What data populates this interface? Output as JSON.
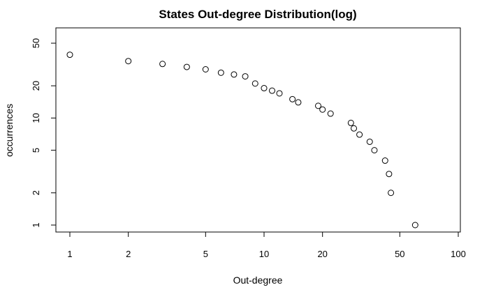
{
  "chart_data": {
    "type": "scatter",
    "title": "States Out-degree Distribution(log)",
    "xlabel": "Out-degree",
    "ylabel": "occurrences",
    "x_scale": "log",
    "y_scale": "log",
    "xlim": [
      1,
      100
    ],
    "ylim": [
      0.85,
      65
    ],
    "x_ticks": [
      1,
      2,
      5,
      10,
      20,
      50,
      100
    ],
    "y_ticks": [
      1,
      2,
      5,
      10,
      20,
      50
    ],
    "grid": false,
    "marker": "open-circle",
    "points": [
      {
        "x": 1,
        "y": 39
      },
      {
        "x": 2,
        "y": 34
      },
      {
        "x": 3,
        "y": 32
      },
      {
        "x": 4,
        "y": 30
      },
      {
        "x": 5,
        "y": 28.5
      },
      {
        "x": 6,
        "y": 26.5
      },
      {
        "x": 7,
        "y": 25.5
      },
      {
        "x": 8,
        "y": 24.5
      },
      {
        "x": 9,
        "y": 21
      },
      {
        "x": 10,
        "y": 19
      },
      {
        "x": 11,
        "y": 18
      },
      {
        "x": 12,
        "y": 17
      },
      {
        "x": 14,
        "y": 15
      },
      {
        "x": 15,
        "y": 14
      },
      {
        "x": 19,
        "y": 13
      },
      {
        "x": 20,
        "y": 12
      },
      {
        "x": 22,
        "y": 11
      },
      {
        "x": 28,
        "y": 9
      },
      {
        "x": 29,
        "y": 8
      },
      {
        "x": 31,
        "y": 7
      },
      {
        "x": 35,
        "y": 6
      },
      {
        "x": 37,
        "y": 5
      },
      {
        "x": 42,
        "y": 4
      },
      {
        "x": 44,
        "y": 3
      },
      {
        "x": 45,
        "y": 2
      },
      {
        "x": 60,
        "y": 1
      }
    ]
  }
}
